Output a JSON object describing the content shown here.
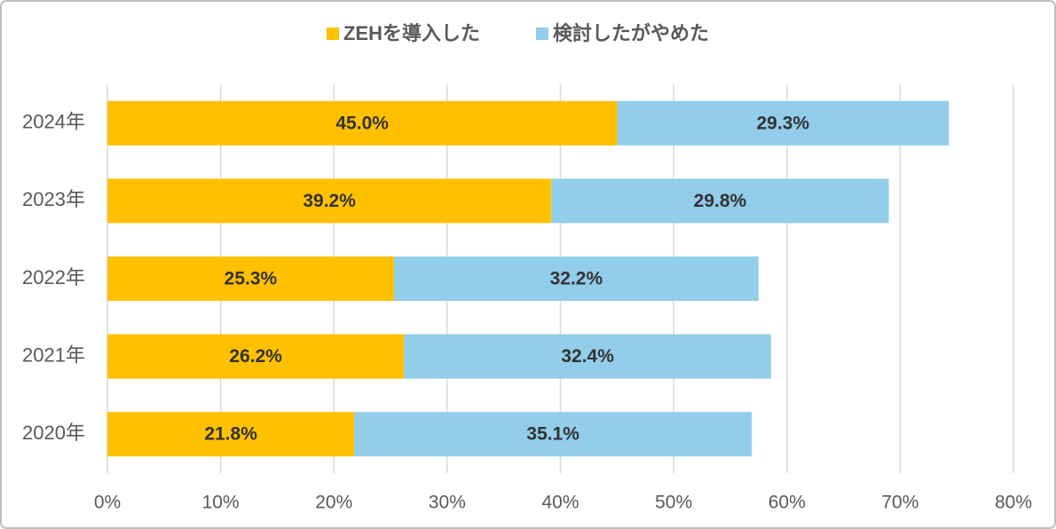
{
  "chart_data": {
    "type": "stacked-bar-horizontal",
    "categories": [
      "2024年",
      "2023年",
      "2022年",
      "2021年",
      "2020年"
    ],
    "series": [
      {
        "name": "ZEHを導入した",
        "color": "#FFC000",
        "values": [
          45.0,
          39.2,
          25.3,
          26.2,
          21.8
        ],
        "value_labels": [
          "45.0%",
          "39.2%",
          "25.3%",
          "26.2%",
          "21.8%"
        ]
      },
      {
        "name": "検討したがやめた",
        "color": "#92CDEA",
        "values": [
          29.3,
          29.8,
          32.2,
          32.4,
          35.1
        ],
        "value_labels": [
          "29.3%",
          "29.8%",
          "32.2%",
          "32.4%",
          "35.1%"
        ]
      }
    ],
    "xlim": [
      0,
      80
    ],
    "xticks": [
      {
        "value": 0,
        "label": "0%"
      },
      {
        "value": 10,
        "label": "10%"
      },
      {
        "value": 20,
        "label": "20%"
      },
      {
        "value": 30,
        "label": "30%"
      },
      {
        "value": 40,
        "label": "40%"
      },
      {
        "value": 50,
        "label": "50%"
      },
      {
        "value": 60,
        "label": "60%"
      },
      {
        "value": 70,
        "label": "70%"
      },
      {
        "value": 80,
        "label": "80%"
      }
    ],
    "grid": true,
    "legend": "top"
  }
}
